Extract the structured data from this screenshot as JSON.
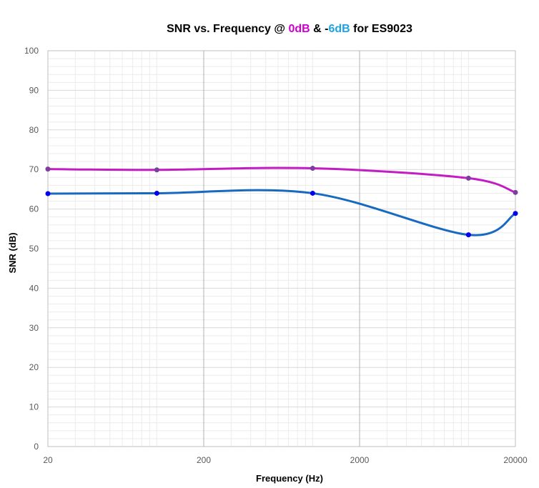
{
  "chart_data": {
    "type": "line",
    "title": {
      "parts": [
        {
          "text": "SNR vs. Frequency @ ",
          "color": "#000000"
        },
        {
          "text": "0dB",
          "color": "#cc00cc"
        },
        {
          "text": " & -",
          "color": "#000000"
        },
        {
          "text": "6dB",
          "color": "#1ea3e0"
        },
        {
          "text": " for ES9023",
          "color": "#000000"
        }
      ]
    },
    "xlabel": "Frequency (Hz)",
    "ylabel": "SNR (dB)",
    "x_scale": "log",
    "xlim": [
      20,
      20000
    ],
    "ylim": [
      0,
      100
    ],
    "x_ticks": [
      20,
      200,
      2000,
      20000
    ],
    "x_tick_labels": [
      "20",
      "200",
      "2000",
      "20000"
    ],
    "y_ticks": [
      0,
      10,
      20,
      30,
      40,
      50,
      60,
      70,
      80,
      90,
      100
    ],
    "y_tick_labels": [
      "0",
      "10",
      "20",
      "30",
      "40",
      "50",
      "60",
      "70",
      "80",
      "90",
      "100"
    ],
    "grid": true,
    "series": [
      {
        "name": "0dB",
        "color": "#c21dc2",
        "marker_color": "#7b3f9e",
        "x": [
          20,
          100,
          1000,
          10000,
          20000
        ],
        "y": [
          70.1,
          69.9,
          70.3,
          67.8,
          64.2
        ]
      },
      {
        "name": "-6dB",
        "color": "#1769c1",
        "marker_color": "#0000ee",
        "x": [
          20,
          100,
          1000,
          10000,
          20000
        ],
        "y": [
          63.9,
          64.0,
          64.0,
          53.5,
          58.9
        ]
      }
    ]
  }
}
